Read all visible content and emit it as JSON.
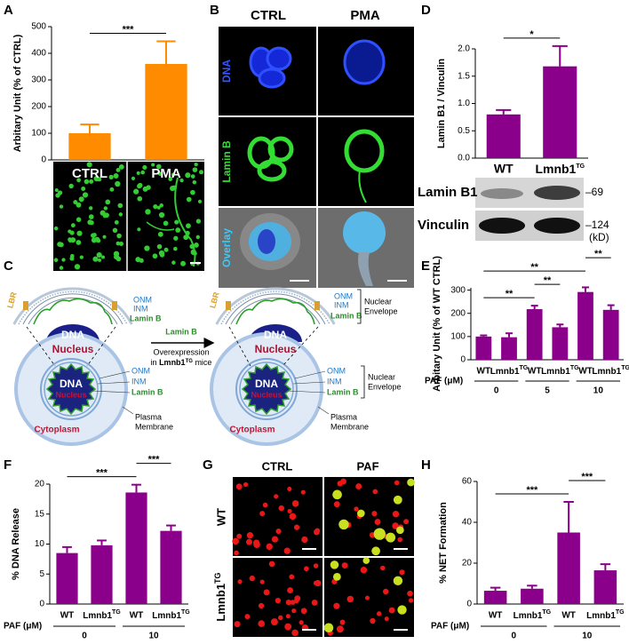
{
  "chart_data": [
    {
      "type": "bar",
      "label": "A",
      "y_label": "Arbitary Unit (% of CTRL)",
      "categories": [
        "CTRL",
        "PMA"
      ],
      "values": [
        100,
        360
      ],
      "errors": [
        33,
        85
      ],
      "color": "#ff8c00",
      "ylim": [
        0,
        500
      ],
      "yticks": [
        0,
        100,
        200,
        300,
        400,
        500
      ],
      "significance": [
        {
          "between": [
            0,
            1
          ],
          "label": "***"
        }
      ]
    },
    {
      "type": "bar",
      "label": "D",
      "y_label": "Lamin B1 / Vinculin",
      "categories": [
        "WT",
        {
          "text": "Lmnb1",
          "sup": "TG"
        }
      ],
      "values": [
        0.8,
        1.68
      ],
      "errors": [
        0.08,
        0.37
      ],
      "color": "#8b008b",
      "ylim": [
        0,
        2
      ],
      "yticks": [
        {
          "value": 0,
          "label": "0.0"
        },
        0.5,
        {
          "value": 1,
          "label": "1.0"
        },
        1.5,
        {
          "value": 2,
          "label": "2.0"
        }
      ],
      "significance": [
        {
          "between": [
            0,
            1
          ],
          "label": "*"
        }
      ]
    },
    {
      "type": "bar",
      "label": "E",
      "y_label": "Arbitary Unit (% of WT CTRL)",
      "categories": [
        "WT",
        {
          "text": "Lmnb1",
          "sup": "TG"
        },
        "WT",
        {
          "text": "Lmnb1",
          "sup": "TG"
        },
        "WT",
        {
          "text": "Lmnb1",
          "sup": "TG"
        }
      ],
      "values": [
        100,
        97,
        218,
        140,
        292,
        215
      ],
      "errors": [
        5,
        17,
        15,
        12,
        20,
        20
      ],
      "color": "#8b008b",
      "ylim": [
        0,
        310
      ],
      "yticks": [
        0,
        100,
        200,
        300
      ],
      "group_label": "PAF (μM)",
      "groups": [
        0,
        5,
        10
      ],
      "significance": [
        {
          "between": [
            0,
            2
          ],
          "label": "**"
        },
        {
          "between": [
            2,
            3
          ],
          "label": "**"
        },
        {
          "between": [
            0,
            4
          ],
          "label": "**"
        },
        {
          "between": [
            4,
            5
          ],
          "label": "**"
        }
      ]
    },
    {
      "type": "bar",
      "label": "F",
      "y_label": "% DNA Release",
      "categories": [
        "WT",
        {
          "text": "Lmnb1",
          "sup": "TG"
        },
        "WT",
        {
          "text": "Lmnb1",
          "sup": "TG"
        }
      ],
      "values": [
        8.5,
        9.8,
        18.6,
        12.2
      ],
      "errors": [
        1.0,
        0.8,
        1.3,
        0.9
      ],
      "color": "#8b008b",
      "ylim": [
        0,
        20
      ],
      "yticks": [
        0,
        5,
        10,
        15,
        20
      ],
      "group_label": "PAF (μM)",
      "groups": [
        0,
        10
      ],
      "significance": [
        {
          "between": [
            0,
            2
          ],
          "label": "***"
        },
        {
          "between": [
            2,
            3
          ],
          "label": "***"
        }
      ]
    },
    {
      "type": "bar",
      "label": "H",
      "y_label": "% NET Formation",
      "categories": [
        "WT",
        {
          "text": "Lmnb1",
          "sup": "TG"
        },
        "WT",
        {
          "text": "Lmnb1",
          "sup": "TG"
        }
      ],
      "values": [
        6.5,
        7.5,
        35,
        16.5
      ],
      "errors": [
        1.5,
        1.5,
        15,
        3
      ],
      "color": "#8b008b",
      "ylim": [
        0,
        60
      ],
      "yticks": [
        0,
        20,
        40,
        60
      ],
      "group_label": "PAF (μM)",
      "groups": [
        0,
        10
      ],
      "significance": [
        {
          "between": [
            0,
            2
          ],
          "label": "***"
        },
        {
          "between": [
            2,
            3
          ],
          "label": "***"
        }
      ]
    }
  ],
  "panels": {
    "B": {
      "label": "B",
      "columns": [
        "CTRL",
        "PMA"
      ],
      "rows": [
        "DNA",
        "Lamin B",
        "Overlay"
      ]
    },
    "C": {
      "label": "C",
      "left": {
        "inset": {
          "onm": "ONM",
          "inm": "INM",
          "lamin": "Lamin B",
          "lbr": "LBR",
          "dna": "DNA",
          "nucleus": "Nucleus"
        },
        "cell": {
          "dna": "DNA",
          "nucleus": "Nucleus",
          "onm": "ONM",
          "inm": "INM",
          "lamin": "Lamin B",
          "cytoplasm": "Cytoplasm",
          "membrane": [
            "Plasma",
            "Membrane"
          ]
        }
      },
      "arrow": {
        "title": "Lamin B",
        "line": "Overexpression",
        "strain_line": {
          "pre": "in",
          "strain": "Lmnb1",
          "sup": "TG",
          "post": "mice"
        }
      },
      "right": {
        "inset": {
          "onm": "ONM",
          "inm": "INM",
          "lamin": "Lamin B",
          "lbr": "LBR",
          "dna": "DNA",
          "nucleus": "Nucleus",
          "envelope": [
            "Nuclear",
            "Envelope"
          ]
        },
        "cell": {
          "dna": "DNA",
          "nucleus": "Nucleus",
          "onm": "ONM",
          "inm": "INM",
          "lamin": "Lamin B",
          "envelope": [
            "Nuclear",
            "Envelope"
          ],
          "cytoplasm": "Cytoplasm",
          "membrane": [
            "Plasma",
            "Membrane"
          ]
        }
      }
    },
    "G": {
      "label": "G",
      "columns": [
        "CTRL",
        "PAF"
      ],
      "rows": [
        "WT",
        {
          "text": "Lmnb1",
          "sup": "TG"
        }
      ]
    }
  },
  "blot": {
    "rows": [
      "Lamin B1",
      "Vinculin"
    ],
    "markers": [
      "–69",
      "–124"
    ],
    "unit": "(kD)"
  }
}
